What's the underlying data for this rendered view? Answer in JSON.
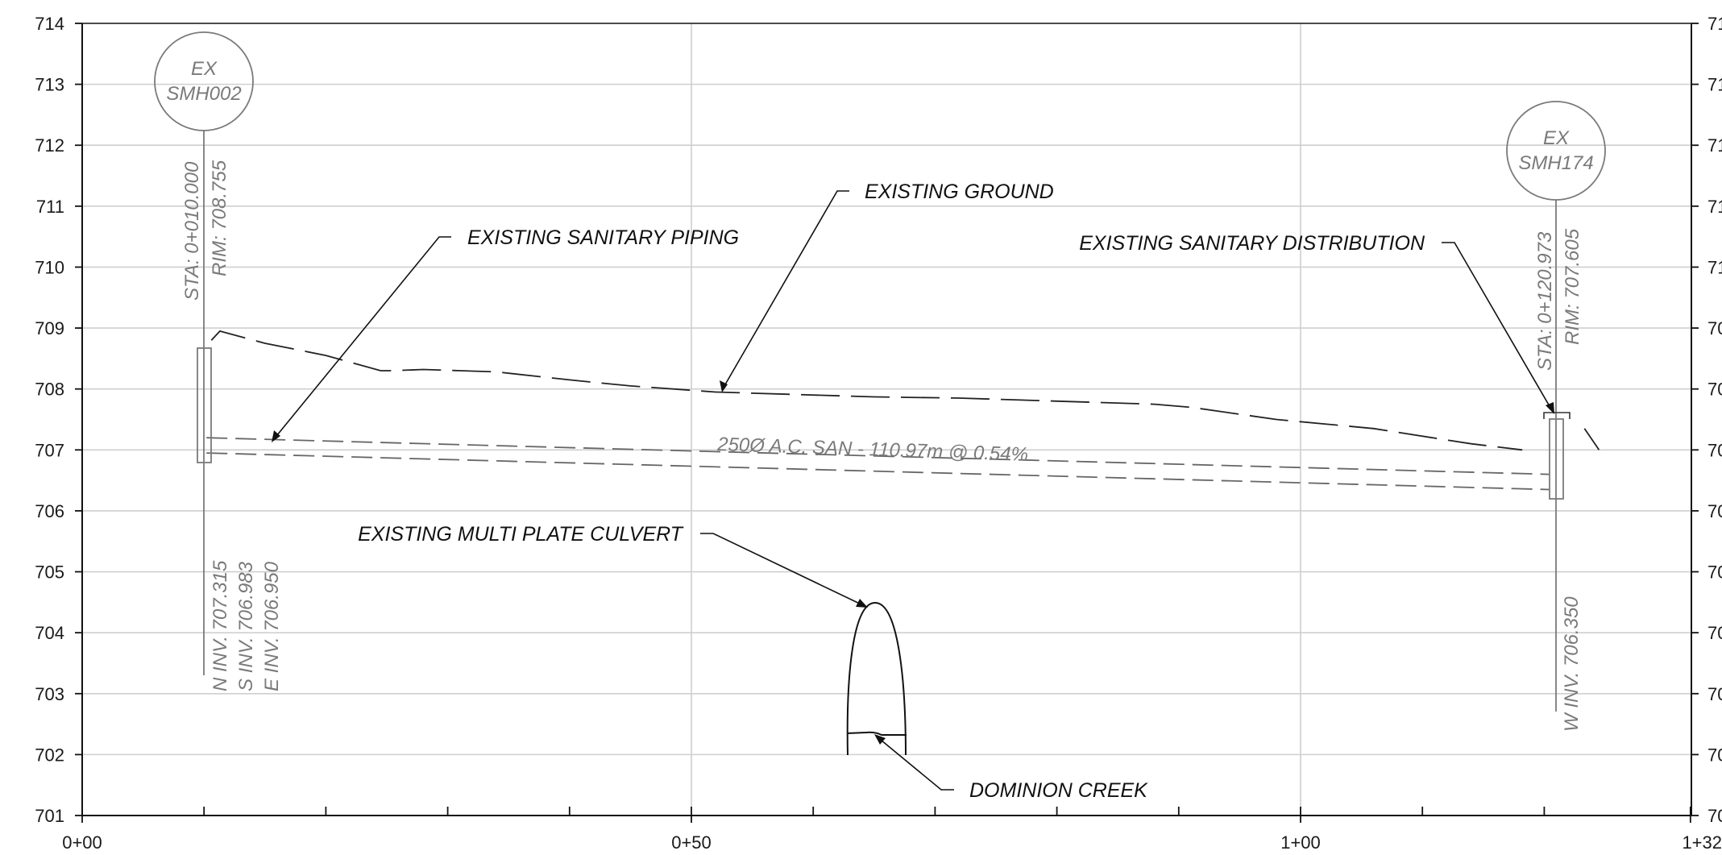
{
  "profile": {
    "y_axis": {
      "range": [
        701,
        714
      ],
      "ticks": [
        "714",
        "713",
        "712",
        "711",
        "710",
        "709",
        "708",
        "707",
        "706",
        "705",
        "704",
        "703",
        "702",
        "701"
      ]
    },
    "y_axis_right_ticks": [
      "71",
      "71",
      "71",
      "71",
      "71",
      "70",
      "70",
      "70",
      "70",
      "70",
      "70",
      "70",
      "70",
      "70"
    ],
    "x_axis": {
      "range_m": [
        0,
        132
      ],
      "labels": [
        {
          "station": 0,
          "label": "0+00"
        },
        {
          "station": 50,
          "label": "0+50"
        },
        {
          "station": 100,
          "label": "1+00"
        },
        {
          "station": 132,
          "label": "1+32"
        }
      ],
      "minor_tick_stations": [
        10,
        20,
        30,
        40,
        60,
        70,
        80,
        90,
        110,
        120
      ]
    },
    "gridlines_x_stations": [
      50,
      100
    ],
    "existing_ground": [
      [
        10.6,
        708.8
      ],
      [
        11.3,
        708.95
      ],
      [
        15,
        708.75
      ],
      [
        20,
        708.55
      ],
      [
        24.5,
        708.3
      ],
      [
        25.5,
        708.3
      ],
      [
        28,
        708.32
      ],
      [
        31,
        708.3
      ],
      [
        34,
        708.28
      ],
      [
        40,
        708.15
      ],
      [
        45,
        708.05
      ],
      [
        52,
        707.95
      ],
      [
        65,
        707.87
      ],
      [
        72,
        707.85
      ],
      [
        80,
        707.8
      ],
      [
        88,
        707.75
      ],
      [
        91,
        707.7
      ],
      [
        98,
        707.5
      ],
      [
        106,
        707.35
      ],
      [
        114,
        707.1
      ],
      [
        118.2,
        707.0
      ]
    ],
    "existing_ground_beyond": [
      [
        123.3,
        707.35
      ],
      [
        124.5,
        707.0
      ]
    ],
    "pipe_top": [
      [
        10.2,
        707.2
      ],
      [
        120.4,
        706.6
      ]
    ],
    "pipe_bottom": [
      [
        10.2,
        706.95
      ],
      [
        120.4,
        706.35
      ]
    ],
    "pipe_label": "250Ø A.C. SAN - 110.97m @ 0.54%",
    "manholes": [
      {
        "id": "EX SMH002",
        "line1": "EX",
        "line2": "SMH002",
        "station": 10.0,
        "sta_text": "STA: 0+010.000",
        "rim_text": "RIM: 708.755",
        "rim": 708.755,
        "inverts": [
          "N INV. 707.315",
          "S INV. 706.983",
          "E INV. 706.950"
        ],
        "invert_values": [
          707.315,
          706.983,
          706.95
        ]
      },
      {
        "id": "EX SMH174",
        "line1": "EX",
        "line2": "SMH174",
        "station": 120.973,
        "sta_text": "STA: 0+120.973",
        "rim_text": "RIM: 707.605",
        "rim": 707.605,
        "inverts": [
          "W INV. 706.350"
        ],
        "invert_values": [
          706.35
        ]
      }
    ],
    "culvert": {
      "station_left": 62.7,
      "station_right": 67.6,
      "crown": 704.5,
      "base": 702.0,
      "creek_level": 702.35
    },
    "callouts": {
      "ground": "EXISTING GROUND",
      "piping": "EXISTING SANITARY PIPING",
      "distribution": "EXISTING SANITARY DISTRIBUTION",
      "culvert": "EXISTING MULTI PLATE CULVERT",
      "creek": "DOMINION CREEK"
    },
    "colors": {
      "axis": "#111111",
      "grid": "#cfcfcf",
      "manhole": "#7a7a7a",
      "pipe": "#666666",
      "ground": "#222222"
    }
  }
}
